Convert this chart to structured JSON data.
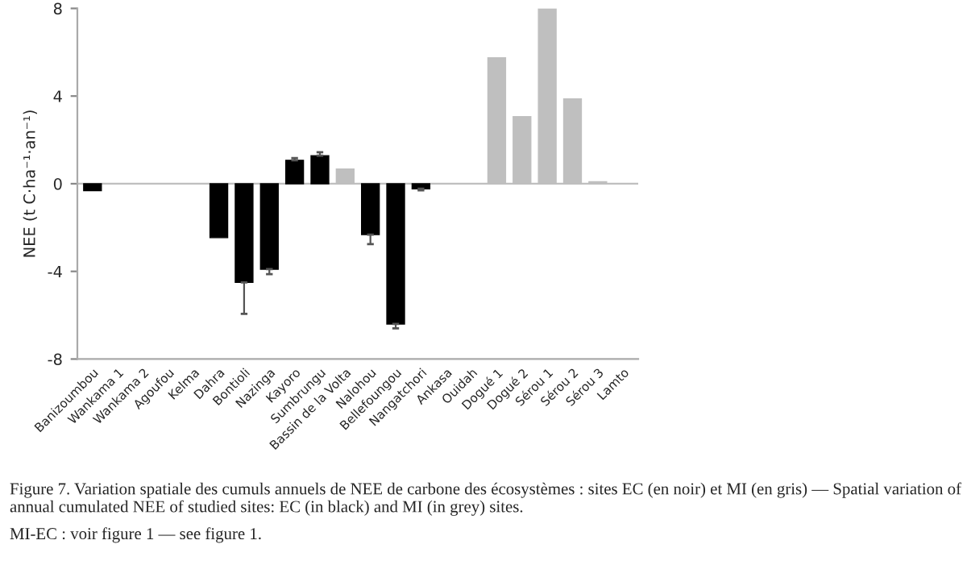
{
  "chart_data": {
    "type": "bar",
    "ylabel": "NEE (t C·ha⁻¹·an⁻¹)",
    "categories": [
      "Banizoumbou",
      "Wankama 1",
      "Wankama 2",
      "Agoufou",
      "Kelma",
      "Dahra",
      "Bontioli",
      "Nazinga",
      "Kayoro",
      "Sumbrungu",
      "Bassin de la Volta",
      "Nalohou",
      "Bellefoungou",
      "Nangatchori",
      "Ankasa",
      "Ouidah",
      "Dogué 1",
      "Dogué 2",
      "Sérou 1",
      "Sérou 2",
      "Sérou 3",
      "Lamto"
    ],
    "values": [
      -0.32,
      null,
      null,
      null,
      null,
      -2.46,
      -4.5,
      -3.9,
      1.07,
      1.28,
      0.67,
      -2.32,
      -6.4,
      -0.23,
      null,
      null,
      5.75,
      3.06,
      7.98,
      3.87,
      0.09,
      null
    ],
    "colors": [
      "#000000",
      "#000000",
      "#000000",
      "#000000",
      "#000000",
      "#000000",
      "#000000",
      "#000000",
      "#000000",
      "#000000",
      "#bfbfbf",
      "#000000",
      "#000000",
      "#000000",
      "#bfbfbf",
      "#bfbfbf",
      "#bfbfbf",
      "#bfbfbf",
      "#bfbfbf",
      "#bfbfbf",
      "#bfbfbf",
      "#bfbfbf"
    ],
    "errors": [
      null,
      null,
      null,
      null,
      null,
      null,
      [
        -5.94,
        -4.5
      ],
      [
        -4.13,
        -3.9
      ],
      [
        1.07,
        1.17
      ],
      [
        1.28,
        1.44
      ],
      null,
      [
        -2.76,
        -2.32
      ],
      [
        -6.6,
        -6.4
      ],
      [
        -0.3,
        -0.23
      ],
      null,
      null,
      null,
      null,
      null,
      null,
      null,
      null
    ],
    "ref_lines": [
      {
        "axis": "y",
        "value": 0,
        "color": "#bfbfbf"
      }
    ],
    "ylim": [
      -8,
      8
    ],
    "yticks": [
      -8,
      -4,
      0,
      4,
      8
    ],
    "grid": false,
    "legend": false,
    "annotations": [
      "Figure 7. Variation spatiale des cumuls annuels de NEE de carbone des écosystèmes : sites EC (en noir) et MI (en gris) — Spatial variation of annual cumulated NEE of studied sites: EC (in black) and MI (in grey) sites.",
      "MI-EC : voir figure 1 — see figure 1."
    ]
  }
}
